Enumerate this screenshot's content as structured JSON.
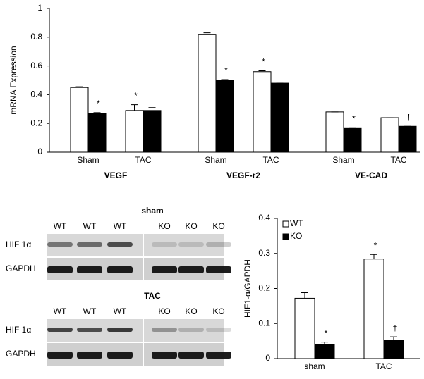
{
  "chart_data": [
    {
      "type": "bar",
      "y_label": "mRNA Expression",
      "categories": [
        "Sham",
        "TAC",
        "Sham",
        "TAC",
        "Sham",
        "TAC"
      ],
      "groups": [
        "VEGF",
        "VEGF-r2",
        "VE-CAD"
      ],
      "ylim": [
        0,
        1
      ],
      "yticks": [
        0,
        0.2,
        0.4,
        0.6,
        0.8,
        1
      ],
      "series": [
        {
          "color": "#ffffff",
          "values": [
            0.45,
            0.29,
            0.82,
            0.56,
            0.28,
            0.24
          ],
          "errors": [
            0.005,
            0.04,
            0.01,
            0.006,
            0,
            0
          ],
          "markers": [
            null,
            "*",
            null,
            "*",
            null,
            null
          ]
        },
        {
          "color": "#000000",
          "values": [
            0.27,
            0.29,
            0.5,
            0.48,
            0.17,
            0.18
          ],
          "errors": [
            0.005,
            0.02,
            0.005,
            0,
            0,
            0
          ],
          "markers": [
            "*",
            null,
            "*",
            null,
            "*",
            "†"
          ]
        }
      ]
    },
    {
      "type": "bar",
      "y_label": "HIF1-α/GAPDH",
      "categories": [
        "sham",
        "TAC"
      ],
      "ylim": [
        0,
        0.4
      ],
      "yticks": [
        0,
        0.1,
        0.2,
        0.3,
        0.4
      ],
      "legend": "top-left",
      "series": [
        {
          "name": "WT",
          "color": "#ffffff",
          "values": [
            0.172,
            0.284
          ],
          "errors": [
            0.016,
            0.013
          ],
          "markers": [
            null,
            "*"
          ]
        },
        {
          "name": "KO",
          "color": "#000000",
          "values": [
            0.041,
            0.052
          ],
          "errors": [
            0.006,
            0.01
          ],
          "markers": [
            "*",
            "†"
          ]
        }
      ]
    }
  ],
  "blots": [
    {
      "title": "sham",
      "lanes": [
        "WT",
        "WT",
        "WT",
        "KO",
        "KO",
        "KO"
      ],
      "rows": [
        "HIF 1α",
        "GAPDH"
      ]
    },
    {
      "title": "TAC",
      "lanes": [
        "WT",
        "WT",
        "WT",
        "KO",
        "KO",
        "KO"
      ],
      "rows": [
        "HIF 1α",
        "GAPDH"
      ]
    }
  ]
}
